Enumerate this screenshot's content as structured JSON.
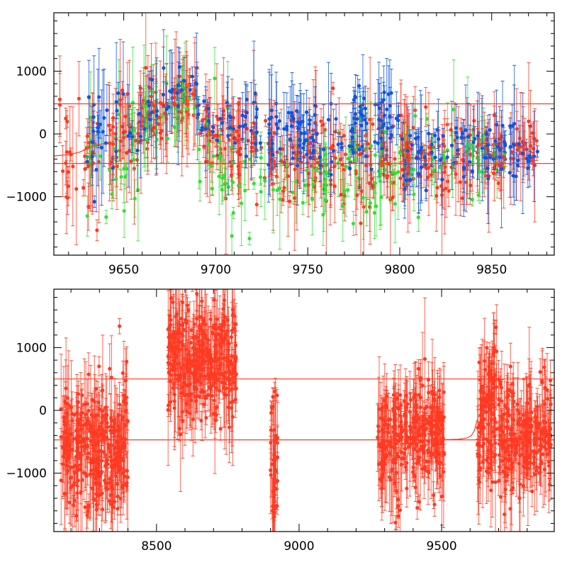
{
  "colors": {
    "red": "#ff3a22",
    "green": "#33e033",
    "blue": "#1155dd",
    "axis": "#000000"
  },
  "chart_data": [
    {
      "type": "scatter",
      "title": "",
      "xlabel": "",
      "ylabel": "",
      "error_bars": true,
      "grid": false,
      "xlim": [
        9612,
        9884
      ],
      "ylim": [
        -1930,
        1930
      ],
      "xticks": [
        9650,
        9700,
        9750,
        9800,
        9850
      ],
      "xtick_labels": [
        "9650",
        "9700",
        "9750",
        "9800",
        "9850"
      ],
      "yticks": [
        -1000,
        0,
        1000
      ],
      "ytick_labels": [
        "−1000",
        "0",
        "1000"
      ],
      "x_minor_step": 10,
      "y_minor_step": 200,
      "horizontal_lines": [
        480,
        -470
      ],
      "model_curve": {
        "x": [
          9612,
          9620,
          9626,
          9630,
          9633,
          9636,
          9640
        ],
        "y": [
          -350,
          -330,
          -290,
          -240,
          -200,
          -170,
          -150
        ]
      },
      "series": [
        {
          "color": "red",
          "segments": [
            {
              "x": [
                9615,
                9640
              ],
              "y": [
                -450,
                -250
              ],
              "n": 35,
              "spread": 650
            },
            {
              "x": [
                9640,
                9665
              ],
              "y": [
                -150,
                250
              ],
              "n": 60,
              "spread": 550
            },
            {
              "x": [
                9665,
                9690
              ],
              "y": [
                300,
                700
              ],
              "n": 70,
              "spread": 400
            },
            {
              "x": [
                9690,
                9730
              ],
              "y": [
                100,
                -300
              ],
              "n": 90,
              "spread": 550
            },
            {
              "x": [
                9730,
                9775
              ],
              "y": [
                -400,
                -450
              ],
              "n": 90,
              "spread": 550
            },
            {
              "x": [
                9775,
                9800
              ],
              "y": [
                -500,
                -350
              ],
              "n": 50,
              "spread": 600
            },
            {
              "x": [
                9800,
                9840
              ],
              "y": [
                -300,
                -400
              ],
              "n": 90,
              "spread": 450
            },
            {
              "x": [
                9840,
                9875
              ],
              "y": [
                -300,
                -250
              ],
              "n": 75,
              "spread": 400
            }
          ]
        },
        {
          "color": "green",
          "segments": [
            {
              "x": [
                9630,
                9660
              ],
              "y": [
                -550,
                -250
              ],
              "n": 25,
              "spread": 750
            },
            {
              "x": [
                9660,
                9690
              ],
              "y": [
                200,
                550
              ],
              "n": 30,
              "spread": 450
            },
            {
              "x": [
                9690,
                9730
              ],
              "y": [
                -350,
                -600
              ],
              "n": 35,
              "spread": 700
            },
            {
              "x": [
                9730,
                9780
              ],
              "y": [
                -700,
                -500
              ],
              "n": 40,
              "spread": 700
            },
            {
              "x": [
                9780,
                9810
              ],
              "y": [
                -600,
                -400
              ],
              "n": 30,
              "spread": 650
            },
            {
              "x": [
                9810,
                9860
              ],
              "y": [
                -500,
                -300
              ],
              "n": 30,
              "spread": 550
            }
          ]
        },
        {
          "color": "blue",
          "segments": [
            {
              "x": [
                9630,
                9660
              ],
              "y": [
                -100,
                150
              ],
              "n": 30,
              "spread": 550
            },
            {
              "x": [
                9660,
                9690
              ],
              "y": [
                400,
                600
              ],
              "n": 25,
              "spread": 400
            },
            {
              "x": [
                9690,
                9730
              ],
              "y": [
                200,
                100
              ],
              "n": 40,
              "spread": 450
            },
            {
              "x": [
                9730,
                9755
              ],
              "y": [
                100,
                0
              ],
              "n": 50,
              "spread": 400
            },
            {
              "x": [
                9755,
                9775
              ],
              "y": [
                -200,
                -150
              ],
              "n": 20,
              "spread": 500
            },
            {
              "x": [
                9775,
                9800
              ],
              "y": [
                200,
                100
              ],
              "n": 50,
              "spread": 450
            },
            {
              "x": [
                9800,
                9875
              ],
              "y": [
                -250,
                -300
              ],
              "n": 90,
              "spread": 450
            }
          ]
        }
      ]
    },
    {
      "type": "scatter",
      "title": "",
      "xlabel": "",
      "ylabel": "",
      "error_bars": true,
      "grid": false,
      "xlim": [
        8140,
        9895
      ],
      "ylim": [
        -1930,
        1930
      ],
      "xticks": [
        8500,
        9000,
        9500
      ],
      "xtick_labels": [
        "8500",
        "9000",
        "9500"
      ],
      "yticks": [
        -1000,
        0,
        1000
      ],
      "ytick_labels": [
        "−1000",
        "0",
        "1000"
      ],
      "x_minor_step": 100,
      "y_minor_step": 200,
      "horizontal_lines": [
        500,
        -470
      ],
      "model_curve": {
        "x": [
          9480,
          9560,
          9590,
          9605,
          9615,
          9625
        ],
        "y": [
          -470,
          -460,
          -440,
          -400,
          -320,
          -150
        ]
      },
      "series": [
        {
          "color": "red",
          "segments": [
            {
              "x": [
                8165,
                8400
              ],
              "y": [
                -650,
                -550
              ],
              "n": 340,
              "spread": 800
            },
            {
              "x": [
                8540,
                8780
              ],
              "y": [
                850,
                750
              ],
              "n": 360,
              "spread": 750
            },
            {
              "x": [
                8900,
                8925
              ],
              "y": [
                -900,
                -800
              ],
              "n": 40,
              "spread": 900
            },
            {
              "x": [
                9275,
                9510
              ],
              "y": [
                -450,
                -380
              ],
              "n": 300,
              "spread": 700
            },
            {
              "x": [
                9625,
                9700
              ],
              "y": [
                -200,
                300
              ],
              "n": 120,
              "spread": 900
            },
            {
              "x": [
                9700,
                9760
              ],
              "y": [
                -500,
                -400
              ],
              "n": 90,
              "spread": 700
            },
            {
              "x": [
                9760,
                9885
              ],
              "y": [
                -450,
                -350
              ],
              "n": 150,
              "spread": 650
            }
          ]
        }
      ]
    }
  ]
}
